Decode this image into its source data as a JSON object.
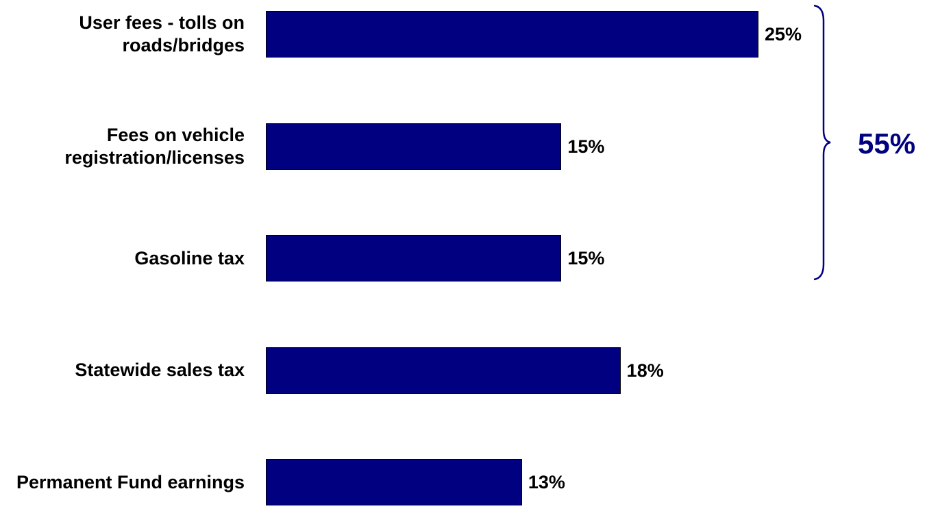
{
  "chart_data": {
    "type": "bar",
    "orientation": "horizontal",
    "categories": [
      "User fees - tolls on roads/bridges",
      "Fees on vehicle registration/licenses",
      "Gasoline tax",
      "Statewide sales tax",
      "Permanent Fund earnings"
    ],
    "values": [
      25,
      15,
      15,
      18,
      13
    ],
    "value_labels": [
      "25%",
      "15%",
      "15%",
      "18%",
      "13%"
    ],
    "color": "#000080",
    "annotation": "55%"
  }
}
